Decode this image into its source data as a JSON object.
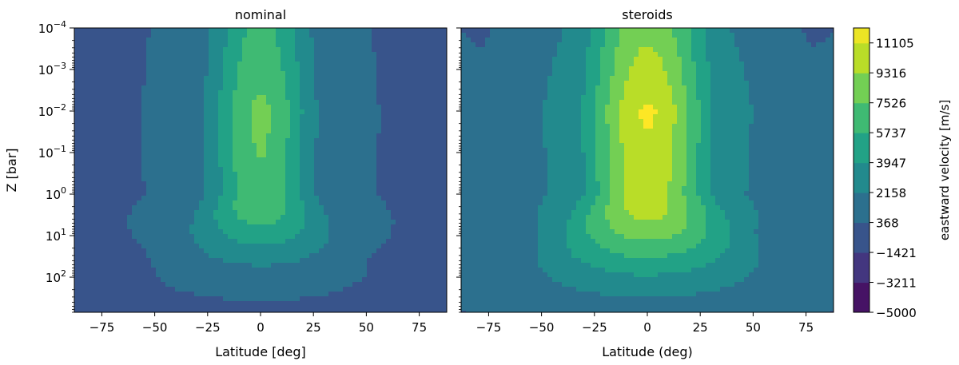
{
  "chart_data": [
    {
      "type": "heatmap",
      "title": "nominal",
      "xlabel": "Latitude [deg]",
      "ylabel": "Z [bar]",
      "x_ticks": [
        -75,
        -50,
        -25,
        0,
        25,
        50,
        75
      ],
      "x_tick_labels": [
        "−75",
        "−50",
        "−25",
        "0",
        "25",
        "50",
        "75"
      ],
      "xlim": [
        -88,
        88
      ],
      "y_scale": "log",
      "y_inverted": true,
      "ylim_bar": [
        0.0001,
        700
      ],
      "y_ticks": [
        0.0001,
        0.001,
        0.01,
        0.1,
        1,
        10,
        100
      ],
      "y_tick_labels": [
        {
          "base": "10",
          "exp": "−4"
        },
        {
          "base": "10",
          "exp": "−3"
        },
        {
          "base": "10",
          "exp": "−2"
        },
        {
          "base": "10",
          "exp": "−1"
        },
        {
          "base": "10",
          "exp": "0"
        },
        {
          "base": "10",
          "exp": "1"
        },
        {
          "base": "10",
          "exp": "2"
        }
      ],
      "jet": {
        "peak_velocity": 8100,
        "core_lat_halfwidth_deg": 20,
        "deep_extent_bar": 100
      },
      "high_lat_minimum": {
        "velocity": -700,
        "latitudes": [
          -65,
          65
        ]
      },
      "background_velocity": -200
    },
    {
      "type": "heatmap",
      "title": "steroids",
      "xlabel": "Latitude (deg)",
      "ylabel": "",
      "x_ticks": [
        -75,
        -50,
        -25,
        0,
        25,
        50,
        75
      ],
      "x_tick_labels": [
        "−75",
        "−50",
        "−25",
        "0",
        "25",
        "50",
        "75"
      ],
      "xlim": [
        -88,
        88
      ],
      "y_scale": "log",
      "y_inverted": true,
      "ylim_bar": [
        0.0001,
        700
      ],
      "jet": {
        "peak_velocity": 11300,
        "core_lat_halfwidth_deg": 25,
        "deep_extent_bar": 300
      },
      "high_lat_minimum": {
        "velocity": -600,
        "latitudes": [
          -70,
          70
        ]
      },
      "background_velocity": 0
    }
  ],
  "colorbar": {
    "label": "eastward velocity [m/s]",
    "colormap": "viridis",
    "range": [
      -5000,
      12000
    ],
    "levels": [
      -5000,
      -3211,
      -1421,
      368,
      2158,
      3947,
      5737,
      7526,
      9316,
      11105
    ],
    "tick_labels": [
      "−5000",
      "−3211",
      "−1421",
      "368",
      "2158",
      "3947",
      "5737",
      "7526",
      "9316",
      "11105"
    ]
  }
}
